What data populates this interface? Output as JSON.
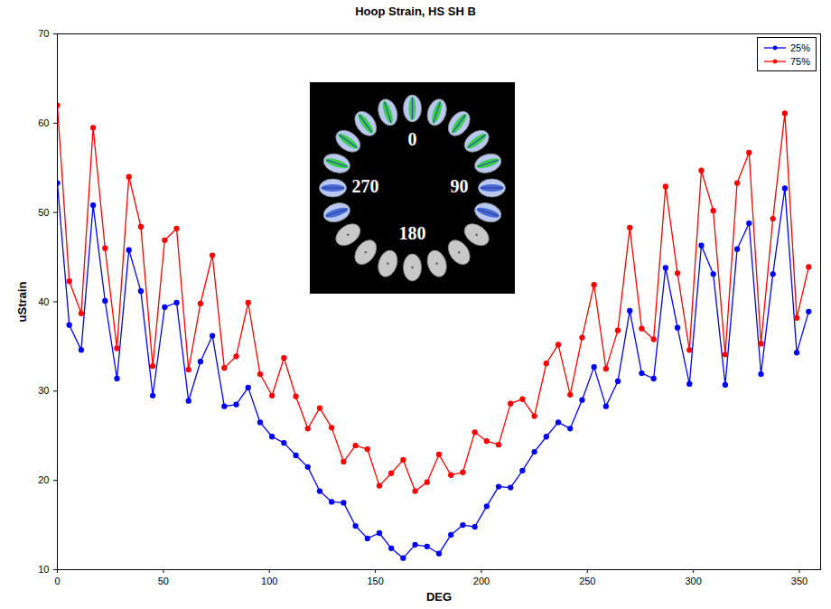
{
  "chart_data": {
    "type": "line",
    "title": "Hoop Strain, HS SH B",
    "x_label": "DEG",
    "y_label": "uStrain",
    "x": [
      0,
      5.625,
      11.25,
      16.875,
      22.5,
      28.125,
      33.75,
      39.375,
      45,
      50.625,
      56.25,
      61.875,
      67.5,
      73.125,
      78.75,
      84.375,
      90,
      95.625,
      101.25,
      106.875,
      112.5,
      118.125,
      123.75,
      129.375,
      135,
      140.625,
      146.25,
      151.875,
      157.5,
      163.125,
      168.75,
      174.375,
      180,
      185.625,
      191.25,
      196.875,
      202.5,
      208.125,
      213.75,
      219.375,
      225,
      230.625,
      236.25,
      241.875,
      247.5,
      253.125,
      258.75,
      264.375,
      270,
      275.625,
      281.25,
      286.875,
      292.5,
      298.125,
      303.75,
      309.375,
      315,
      320.625,
      326.25,
      331.875,
      337.5,
      343.125,
      348.75,
      354.375
    ],
    "series": [
      {
        "name": "25%",
        "color": "#0000ff",
        "values": [
          53.3,
          37.4,
          34.6,
          50.8,
          40.1,
          31.4,
          45.8,
          41.2,
          29.5,
          39.4,
          39.9,
          28.9,
          33.3,
          36.2,
          28.3,
          28.5,
          30.4,
          26.5,
          24.9,
          24.2,
          22.8,
          21.5,
          18.8,
          17.6,
          17.5,
          14.9,
          13.5,
          14.1,
          12.4,
          11.3,
          12.8,
          12.6,
          11.8,
          13.9,
          15.0,
          14.8,
          17.1,
          19.3,
          19.2,
          21.1,
          23.2,
          24.9,
          26.5,
          25.8,
          29.0,
          32.7,
          28.3,
          31.1,
          39.0,
          32.0,
          31.4,
          43.8,
          37.1,
          30.8,
          46.3,
          43.1,
          30.7,
          45.9,
          48.8,
          31.9,
          43.1,
          52.7,
          34.3,
          38.9
        ]
      },
      {
        "name": "75%",
        "color": "#ff0000",
        "values": [
          62.0,
          42.3,
          38.7,
          59.5,
          46.0,
          34.8,
          54.0,
          48.4,
          32.8,
          46.9,
          48.2,
          32.4,
          39.8,
          45.2,
          32.6,
          33.9,
          39.9,
          31.9,
          29.5,
          33.7,
          29.4,
          25.8,
          28.1,
          25.9,
          22.1,
          23.9,
          23.5,
          19.4,
          20.8,
          22.3,
          18.8,
          19.8,
          22.9,
          20.6,
          20.9,
          25.4,
          24.4,
          24.0,
          28.6,
          29.1,
          27.2,
          33.1,
          35.2,
          29.6,
          36.0,
          41.9,
          32.5,
          36.8,
          48.3,
          37.0,
          35.8,
          52.9,
          43.2,
          34.6,
          54.7,
          50.2,
          34.1,
          53.3,
          56.7,
          35.3,
          49.3,
          61.1,
          38.2,
          43.9
        ]
      }
    ],
    "xlim": [
      0,
      360
    ],
    "xticks": [
      0,
      50,
      100,
      150,
      200,
      250,
      300,
      350
    ],
    "ylim": [
      10,
      70
    ],
    "yticks": [
      10,
      20,
      30,
      40,
      50,
      60,
      70
    ],
    "grid": false,
    "legend": "top-right",
    "marker": "circle",
    "line_style": "solid",
    "annotations": [
      "0",
      "270",
      "90",
      "180"
    ]
  }
}
